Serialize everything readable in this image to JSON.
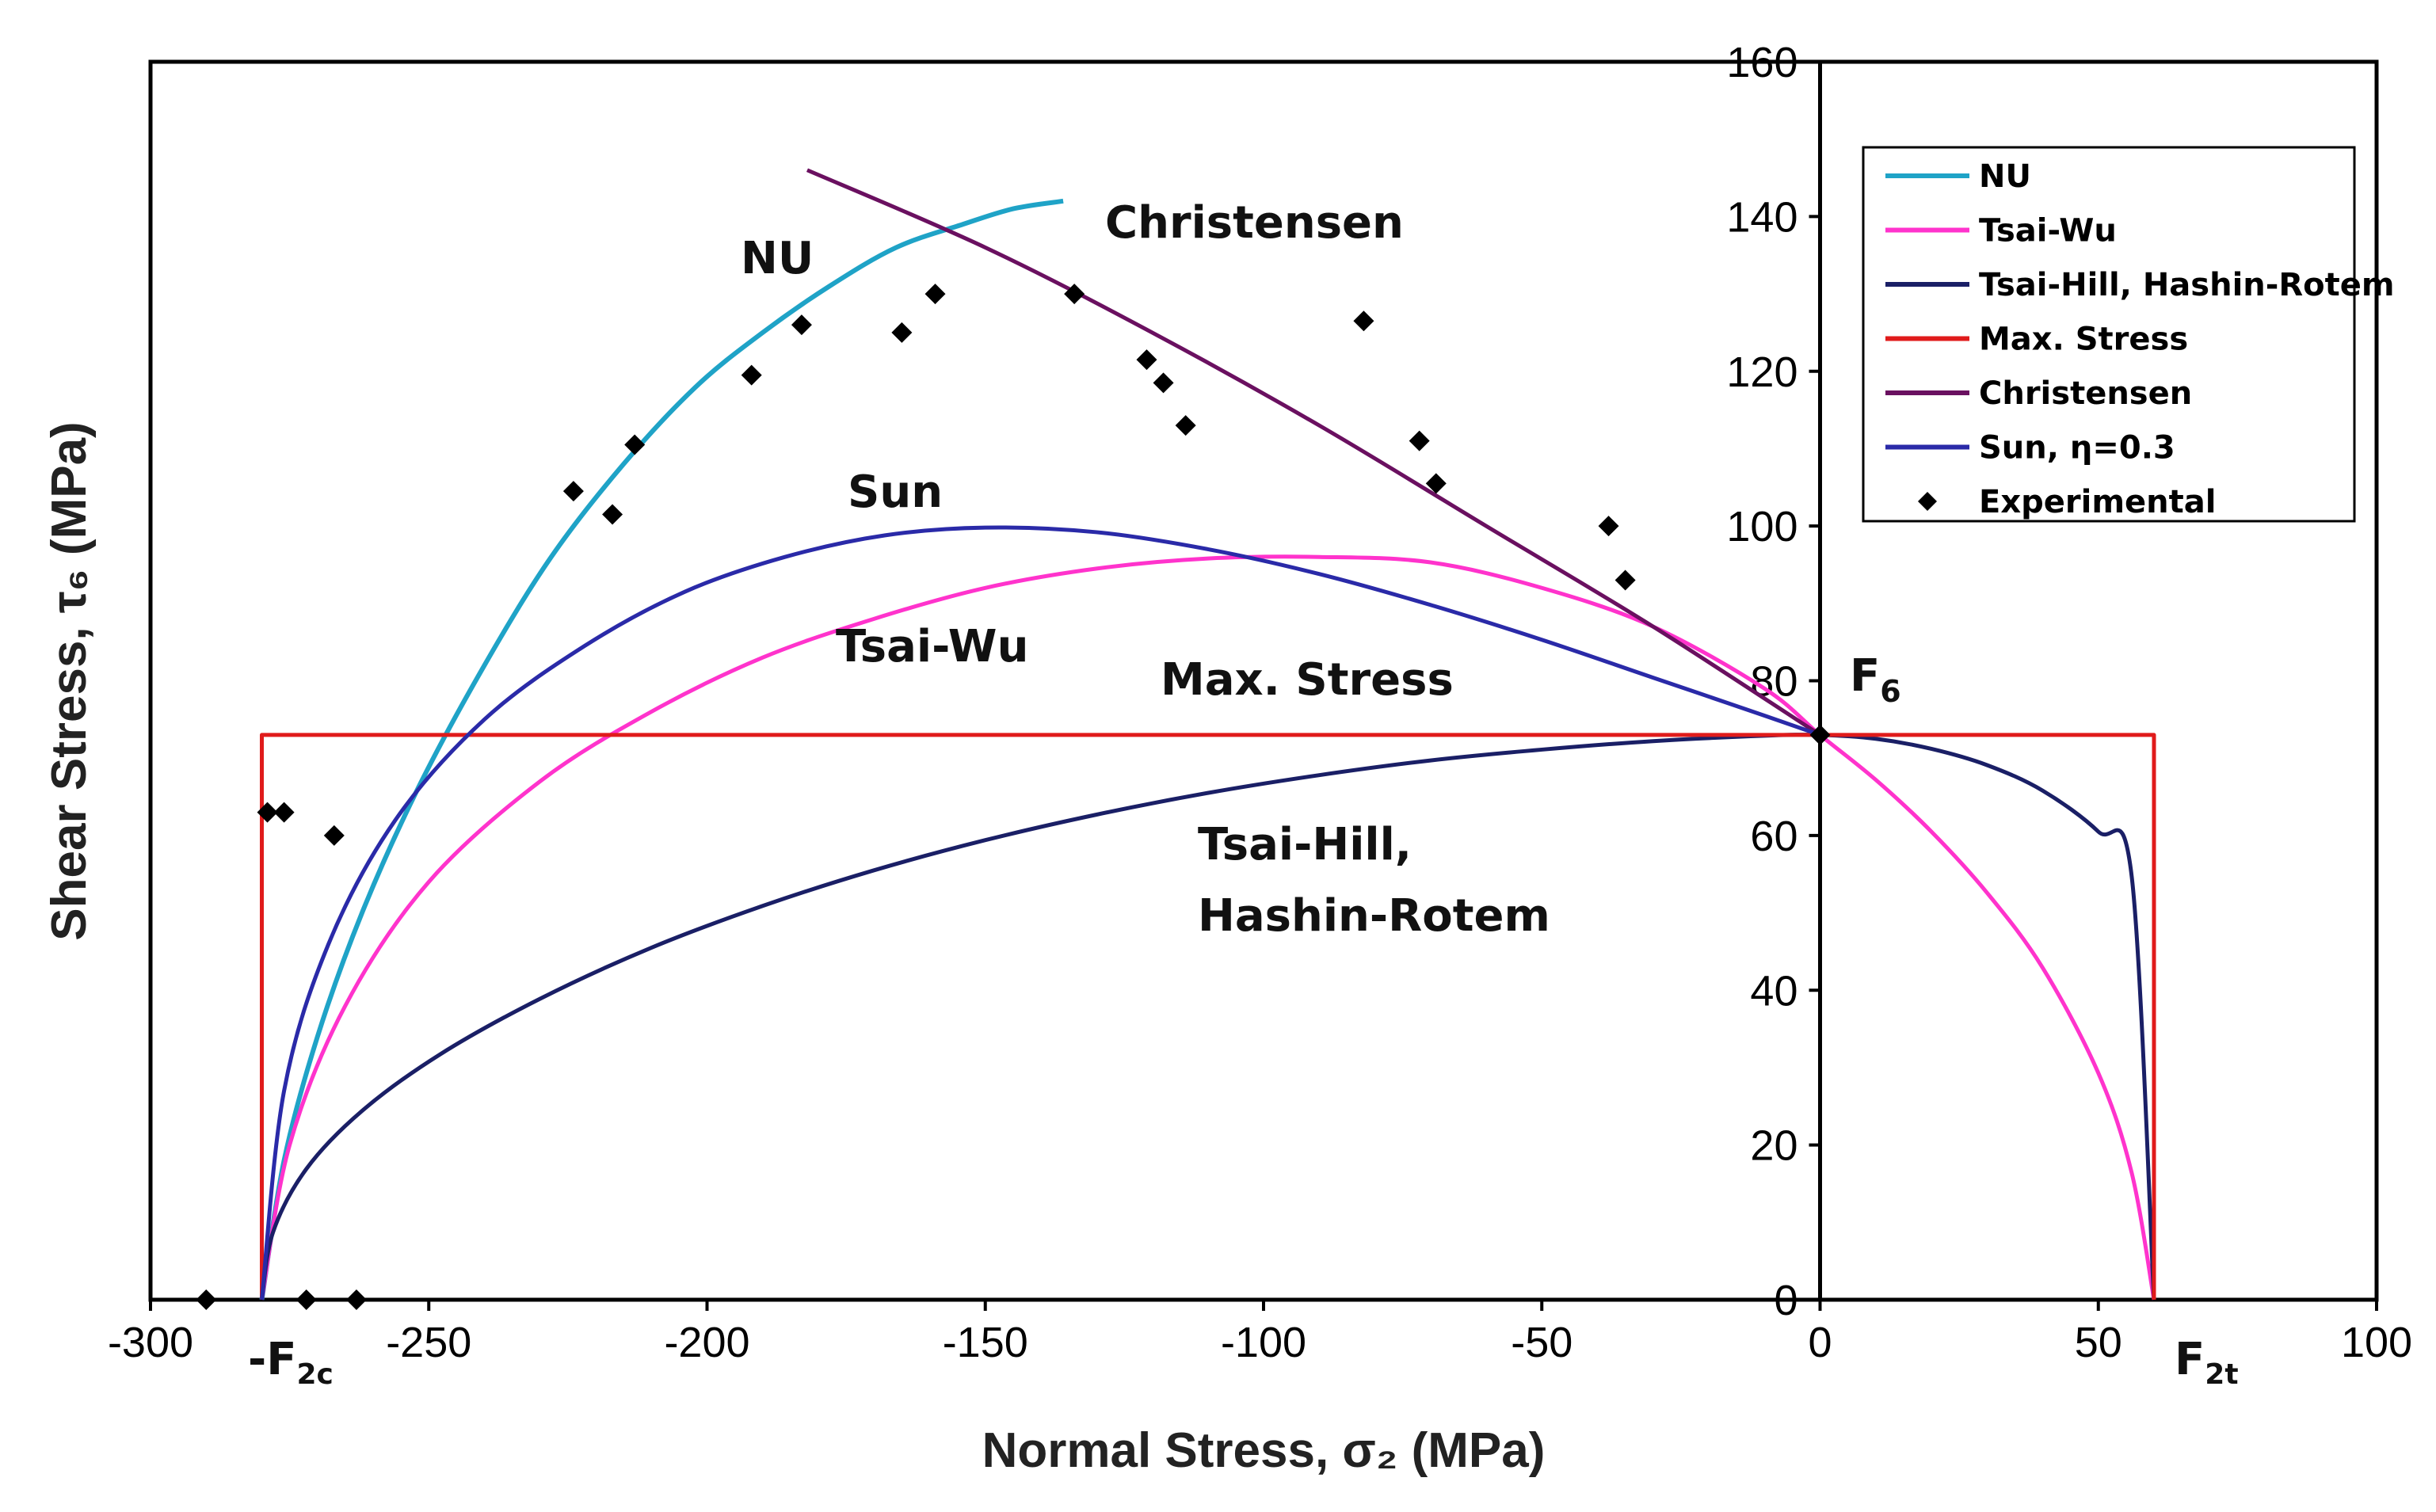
{
  "chart_data": {
    "type": "line",
    "xlabel": "Normal Stress, σ₂ (MPa)",
    "ylabel": "Shear Stress, τ₆ (MPa)",
    "xlim": [
      -300,
      100
    ],
    "ylim": [
      0,
      160
    ],
    "x_ticks": [
      "-300",
      "-250",
      "-200",
      "-150",
      "-100",
      "-50",
      "0",
      "50",
      "100"
    ],
    "y_ticks": [
      "0",
      "20",
      "40",
      "60",
      "80",
      "100",
      "120",
      "140",
      "160"
    ],
    "colors": {
      "nu": "#1fa3c7",
      "tsai_wu": "#ff33cc",
      "tsai_hill": "#1a1f66",
      "max_stress": "#e01b1b",
      "christensen": "#6a1060",
      "sun": "#2a2aa8",
      "experimental": "#000000"
    },
    "parameters": {
      "F2c": -280,
      "F2t": 60,
      "F6": 73
    },
    "series": [
      {
        "name": "NU",
        "key": "nu",
        "x": [
          -280,
          -276,
          -270,
          -262,
          -252,
          -240,
          -228,
          -215,
          -202,
          -190,
          -178,
          -166,
          -154,
          -145,
          -136
        ],
        "y": [
          0,
          18,
          34,
          50,
          66,
          82,
          96,
          108,
          118,
          125,
          131,
          136,
          139,
          141,
          142
        ]
      },
      {
        "name": "Tsai-Wu",
        "key": "tsai_wu",
        "x": [
          -280,
          -275,
          -265,
          -250,
          -230,
          -210,
          -190,
          -170,
          -150,
          -130,
          -110,
          -90,
          -70,
          -50,
          -30,
          -10,
          0,
          10,
          20,
          30,
          40,
          50,
          56,
          60
        ],
        "y": [
          0,
          20,
          38,
          54,
          67,
          76,
          83,
          88,
          92,
          94.5,
          95.8,
          96,
          95.3,
          92,
          87,
          79,
          73,
          67.2,
          60.5,
          52.6,
          42.9,
          29.3,
          16.4,
          0
        ]
      },
      {
        "name": "Tsai-Hill, Hashin-Rotem",
        "key": "tsai_hill",
        "x": [
          -280,
          -278,
          -272,
          -262,
          -248,
          -230,
          -210,
          -190,
          -170,
          -150,
          -130,
          -110,
          -90,
          -70,
          -50,
          -30,
          -10,
          0,
          10,
          20,
          30,
          40,
          50,
          56,
          60
        ],
        "y": [
          0,
          8.7,
          16.9,
          24.4,
          31.7,
          38.9,
          45.5,
          50.9,
          55.5,
          59.4,
          62.7,
          65.5,
          67.8,
          69.7,
          71.1,
          72.2,
          72.9,
          73,
          72.5,
          71.2,
          69.1,
          65.8,
          60.5,
          54.7,
          0
        ]
      },
      {
        "name": "Max. Stress",
        "key": "max_stress",
        "x": [
          -280,
          -280,
          60,
          60
        ],
        "y": [
          0,
          73,
          73,
          0
        ]
      },
      {
        "name": "Christensen",
        "key": "christensen",
        "x": [
          -182,
          -150,
          -120,
          -90,
          -60,
          -30,
          0
        ],
        "y": [
          146,
          136,
          125,
          113,
          100,
          87,
          73
        ]
      },
      {
        "name": "Sun, η=0.3",
        "key": "sun",
        "x": [
          -280,
          -276,
          -268,
          -256,
          -240,
          -222,
          -204,
          -186,
          -168,
          -150,
          -130,
          -110,
          -90,
          -70,
          -50,
          -30,
          -10,
          0
        ],
        "y": [
          0,
          27,
          46,
          62,
          75,
          84.5,
          91.5,
          96,
          98.8,
          99.8,
          99.2,
          97,
          93.8,
          89.8,
          85.3,
          80.4,
          75.5,
          73
        ]
      },
      {
        "name": "Experimental",
        "key": "experimental",
        "kind": "scatter",
        "x": [
          -290,
          -272,
          -263,
          -279,
          -276,
          -267,
          -224,
          -217,
          -213,
          -192,
          -183,
          -165,
          -159,
          -134,
          -121,
          -118,
          -114,
          -82,
          -72,
          -69,
          -38,
          -35,
          0
        ],
        "y": [
          0,
          0,
          0,
          63,
          63,
          60,
          104.5,
          101.5,
          110.5,
          119.5,
          126,
          125,
          130,
          130,
          121.5,
          118.5,
          113,
          126.5,
          111,
          105.5,
          100,
          93,
          73
        ]
      }
    ],
    "legend": {
      "placement": "top-right",
      "entries": [
        {
          "label": "NU",
          "key": "nu",
          "marker": "line"
        },
        {
          "label": "Tsai-Wu",
          "key": "tsai_wu",
          "marker": "line"
        },
        {
          "label": "Tsai-Hill, Hashin-Rotem",
          "key": "tsai_hill",
          "marker": "line"
        },
        {
          "label": "Max. Stress",
          "key": "max_stress",
          "marker": "line"
        },
        {
          "label": "Christensen",
          "key": "christensen",
          "marker": "line"
        },
        {
          "label": "Sun, η=0.3",
          "key": "sun",
          "marker": "line"
        },
        {
          "label": "Experimental",
          "key": "experimental",
          "marker": "diamond"
        }
      ]
    },
    "annotations": {
      "nu": "NU",
      "christensen": "Christensen",
      "sun": "Sun",
      "tsai_wu": "Tsai-Wu",
      "max_stress": "Max. Stress",
      "tsai_hill_line1": "Tsai-Hill,",
      "tsai_hill_line2": "Hashin-Rotem",
      "f6": "F",
      "f6_sub": "6",
      "f2c": "-F",
      "f2c_sub": "2c",
      "f2t": "F",
      "f2t_sub": "2t"
    }
  }
}
